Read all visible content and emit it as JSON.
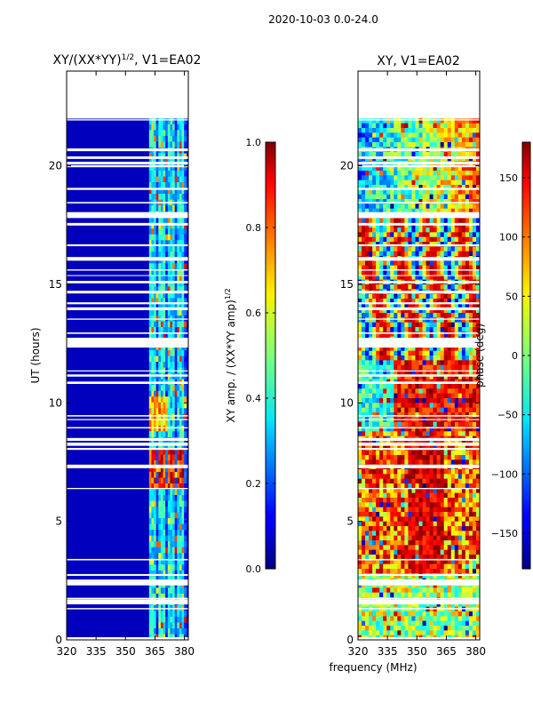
{
  "suptitle": "2020-10-03 0.0-24.0",
  "chart_data": [
    {
      "type": "heatmap",
      "title": "XY/(XX*YY)^1/2, V1=EA02",
      "title_main": "XY/(XX*YY)",
      "title_sup": "1/2",
      "title_tail": ", V1=EA02",
      "xlabel": "",
      "ylabel": "UT (hours)",
      "xlim": [
        320,
        382
      ],
      "ylim": [
        0,
        24
      ],
      "xticks": [
        320,
        335,
        350,
        365,
        380
      ],
      "yticks": [
        0,
        5,
        10,
        15,
        20
      ],
      "data_extent_hours": [
        0,
        22
      ],
      "active_band_mhz": [
        362,
        381
      ],
      "colorbar": {
        "label_main": "XY amp. / (XX*YY amp)",
        "label_sup": "1/2",
        "range": [
          0.0,
          1.0
        ],
        "ticks": [
          "0.0",
          "0.2",
          "0.4",
          "0.6",
          "0.8",
          "1.0"
        ],
        "tick_values": [
          0.0,
          0.2,
          0.4,
          0.6,
          0.8,
          1.0
        ]
      }
    },
    {
      "type": "heatmap",
      "title": "XY, V1=EA02",
      "xlabel": "frequency (MHz)",
      "ylabel": "",
      "xlim": [
        320,
        382
      ],
      "ylim": [
        0,
        24
      ],
      "xticks": [
        320,
        335,
        350,
        365,
        380
      ],
      "yticks": [
        0,
        5,
        10,
        15,
        20
      ],
      "data_extent_hours": [
        0,
        22
      ],
      "colorbar": {
        "label": "phase (deg)",
        "range": [
          -180,
          180
        ],
        "ticks": [
          "−150",
          "−100",
          "−50",
          "0",
          "50",
          "100",
          "150"
        ],
        "tick_values": [
          -150,
          -100,
          -50,
          0,
          50,
          100,
          150
        ]
      }
    }
  ]
}
